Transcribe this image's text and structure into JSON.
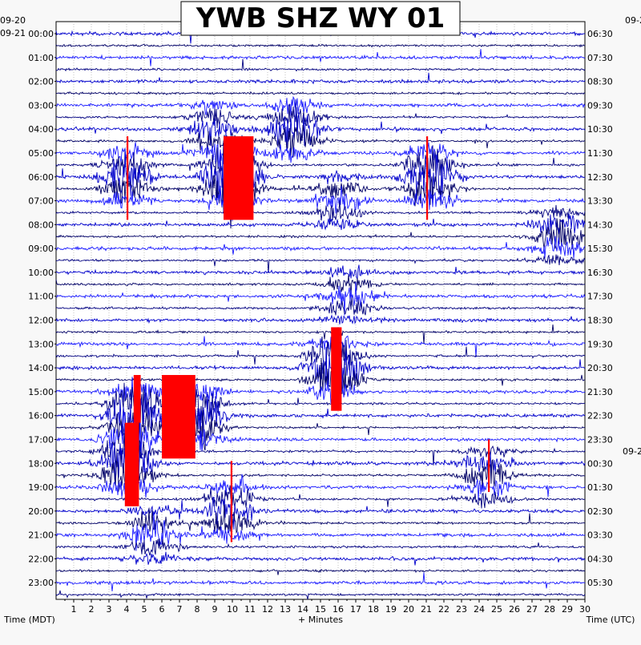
{
  "chart_data": {
    "type": "line",
    "title": "YWB SHZ WY 01",
    "xlabel": "+ Minutes",
    "left_axis_label": "Time (MDT)",
    "right_axis_label": "Time (UTC)",
    "xlim": [
      0,
      30
    ],
    "x_ticks": [
      "1",
      "2",
      "3",
      "4",
      "5",
      "6",
      "7",
      "8",
      "9",
      "10",
      "11",
      "12",
      "13",
      "14",
      "15",
      "16",
      "17",
      "18",
      "19",
      "20",
      "21",
      "22",
      "23",
      "24",
      "25",
      "26",
      "27",
      "28",
      "29",
      "30"
    ],
    "left_dates": [
      "09-20",
      "09-21"
    ],
    "right_dates": [
      "09-2",
      "09-2"
    ],
    "left_hours": [
      "00:00",
      "01:00",
      "02:00",
      "03:00",
      "04:00",
      "05:00",
      "06:00",
      "07:00",
      "08:00",
      "09:00",
      "10:00",
      "11:00",
      "12:00",
      "13:00",
      "14:00",
      "15:00",
      "16:00",
      "17:00",
      "18:00",
      "19:00",
      "20:00",
      "21:00",
      "22:00",
      "23:00"
    ],
    "right_hours": [
      "06:30",
      "07:30",
      "08:30",
      "09:30",
      "10:30",
      "11:30",
      "12:30",
      "13:30",
      "14:30",
      "15:30",
      "16:30",
      "17:30",
      "18:30",
      "19:30",
      "20:30",
      "21:30",
      "22:30",
      "23:30",
      "00:30",
      "01:30",
      "02:30",
      "03:30",
      "04:30",
      "05:30"
    ],
    "trace_colors": [
      "#0000cc",
      "#000066",
      "#1a1aff",
      "#000080"
    ],
    "clip_color": "#ff0000",
    "grid": true,
    "events": [
      {
        "hour": 4.0,
        "minute": 13.5,
        "amplitude": 1.6
      },
      {
        "hour": 4.0,
        "minute": 9.0,
        "amplitude": 1.0
      },
      {
        "hour": 6.0,
        "minute": 4.0,
        "amplitude": 1.5
      },
      {
        "hour": 6.0,
        "minute": 10.0,
        "amplitude": 3.0
      },
      {
        "hour": 6.0,
        "minute": 21.2,
        "amplitude": 2.0
      },
      {
        "hour": 7.0,
        "minute": 16.0,
        "amplitude": 1.0
      },
      {
        "hour": 8.5,
        "minute": 28.5,
        "amplitude": 1.2
      },
      {
        "hour": 11.0,
        "minute": 16.5,
        "amplitude": 1.0
      },
      {
        "hour": 14.0,
        "minute": 15.8,
        "amplitude": 2.2
      },
      {
        "hour": 16.0,
        "minute": 4.5,
        "amplitude": 2.5
      },
      {
        "hour": 16.0,
        "minute": 8.0,
        "amplitude": 2.0
      },
      {
        "hour": 18.0,
        "minute": 4.0,
        "amplitude": 2.2
      },
      {
        "hour": 18.5,
        "minute": 24.5,
        "amplitude": 1.2
      },
      {
        "hour": 20.0,
        "minute": 9.8,
        "amplitude": 1.5
      },
      {
        "hour": 21.0,
        "minute": 5.5,
        "amplitude": 1.2
      }
    ],
    "clipped_segments": [
      {
        "hour_start": 4.3,
        "hour_end": 7.8,
        "minute_start": 9.5,
        "minute_end": 11.2
      },
      {
        "hour_start": 4.3,
        "hour_end": 7.8,
        "minute_start": 4.0,
        "minute_end": 4.1
      },
      {
        "hour_start": 4.3,
        "hour_end": 7.8,
        "minute_start": 21.0,
        "minute_end": 21.1
      },
      {
        "hour_start": 12.3,
        "hour_end": 15.8,
        "minute_start": 15.6,
        "minute_end": 16.2
      },
      {
        "hour_start": 14.3,
        "hour_end": 17.8,
        "minute_start": 6.0,
        "minute_end": 7.9
      },
      {
        "hour_start": 14.3,
        "hour_end": 16.3,
        "minute_start": 4.4,
        "minute_end": 4.8
      },
      {
        "hour_start": 16.3,
        "hour_end": 19.8,
        "minute_start": 3.9,
        "minute_end": 4.7
      },
      {
        "hour_start": 17.9,
        "hour_end": 21.3,
        "minute_start": 9.9,
        "minute_end": 10.0
      },
      {
        "hour_start": 17.0,
        "hour_end": 19.2,
        "minute_start": 24.5,
        "minute_end": 24.6
      }
    ]
  }
}
